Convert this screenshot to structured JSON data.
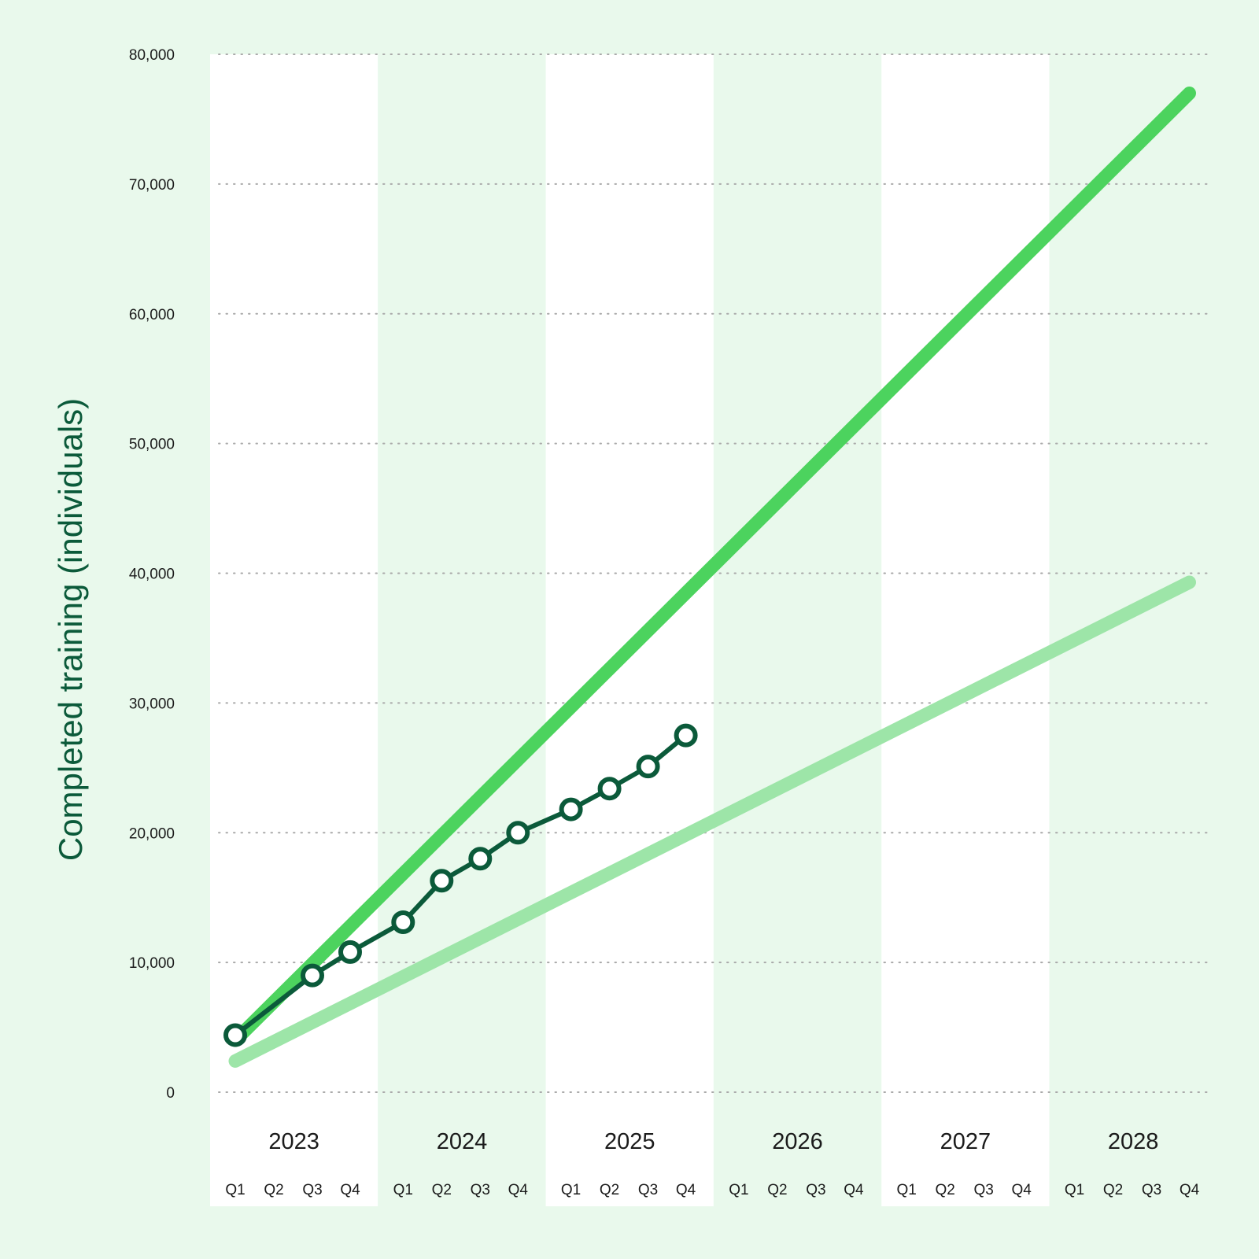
{
  "chart_data": {
    "type": "line",
    "ylabel": "Completed training (individuals)",
    "xlabel": "",
    "ylim": [
      0,
      80000
    ],
    "y_ticks": [
      0,
      10000,
      20000,
      30000,
      40000,
      50000,
      60000,
      70000,
      80000
    ],
    "y_tick_labels": [
      "0",
      "10,000",
      "20,000",
      "30,000",
      "40,000",
      "50,000",
      "60,000",
      "70,000",
      "80,000"
    ],
    "years": [
      "2023",
      "2024",
      "2025",
      "2026",
      "2027",
      "2028"
    ],
    "quarters": [
      "Q1",
      "Q2",
      "Q3",
      "Q4"
    ],
    "grid": true,
    "series": [
      {
        "color": "#4cd35e",
        "style": "thick-line",
        "points": [
          [
            "2023 Q1",
            4000
          ],
          [
            "2028 Q4",
            77000
          ]
        ]
      },
      {
        "color": "#9de5a8",
        "style": "thick-line",
        "points": [
          [
            "2023 Q1",
            2400
          ],
          [
            "2028 Q4",
            39300
          ]
        ]
      },
      {
        "color": "#0b5a3a",
        "style": "line-markers",
        "points": [
          [
            "2023 Q1",
            4400
          ],
          [
            "2023 Q3",
            9000
          ],
          [
            "2023 Q4",
            10800
          ],
          [
            "2024 Q1",
            13100
          ],
          [
            "2024 Q2",
            16300
          ],
          [
            "2024 Q3",
            18000
          ],
          [
            "2024 Q4",
            20000
          ],
          [
            "2025 Q1",
            21800
          ],
          [
            "2025 Q2",
            23400
          ],
          [
            "2025 Q3",
            25100
          ],
          [
            "2025 Q4",
            27500
          ]
        ]
      }
    ]
  }
}
